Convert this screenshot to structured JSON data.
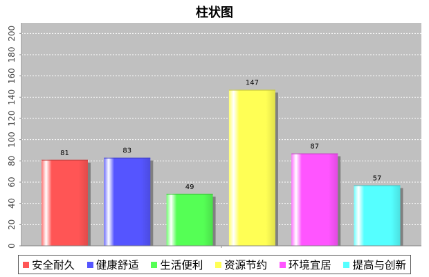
{
  "chart_data": {
    "type": "bar",
    "title": "柱状图",
    "categories": [
      "安全耐久",
      "健康舒适",
      "生活便利",
      "资源节约",
      "环境宜居",
      "提高与创新"
    ],
    "values": [
      81,
      83,
      49,
      147,
      87,
      57
    ],
    "colors": [
      "#ff5555",
      "#5555ff",
      "#55ff55",
      "#ffff55",
      "#ff55ff",
      "#55ffff"
    ],
    "ylim": [
      0,
      210
    ],
    "yticks": [
      0,
      20,
      40,
      60,
      80,
      100,
      120,
      140,
      160,
      180,
      200
    ],
    "grid": true,
    "legend_position": "bottom",
    "plot_background": "#c0c0c0"
  }
}
